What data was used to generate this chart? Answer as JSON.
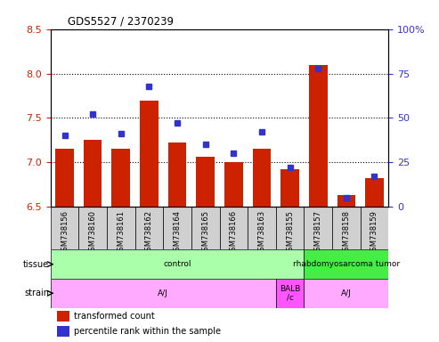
{
  "title": "GDS5527 / 2370239",
  "samples": [
    "GSM738156",
    "GSM738160",
    "GSM738161",
    "GSM738162",
    "GSM738164",
    "GSM738165",
    "GSM738166",
    "GSM738163",
    "GSM738155",
    "GSM738157",
    "GSM738158",
    "GSM738159"
  ],
  "red_values": [
    7.15,
    7.25,
    7.15,
    7.7,
    7.22,
    7.06,
    7.0,
    7.15,
    6.92,
    8.1,
    6.63,
    6.82
  ],
  "blue_values": [
    40,
    52,
    41,
    68,
    47,
    35,
    30,
    42,
    22,
    78,
    5,
    17
  ],
  "ylim_left": [
    6.5,
    8.5
  ],
  "ylim_right": [
    0,
    100
  ],
  "yticks_left": [
    6.5,
    7.0,
    7.5,
    8.0,
    8.5
  ],
  "yticks_right": [
    0,
    25,
    50,
    75,
    100
  ],
  "bar_color": "#cc2200",
  "dot_color": "#3333cc",
  "bar_bottom": 6.5,
  "tissue_groups": [
    {
      "label": "control",
      "start": 0,
      "end": 9,
      "color": "#aaffaa"
    },
    {
      "label": "rhabdomyosarcoma tumor",
      "start": 9,
      "end": 12,
      "color": "#44ee44"
    }
  ],
  "strain_groups": [
    {
      "label": "A/J",
      "start": 0,
      "end": 8,
      "color": "#ffaaff"
    },
    {
      "label": "BALB\n/c",
      "start": 8,
      "end": 9,
      "color": "#ff55ff"
    },
    {
      "label": "A/J",
      "start": 9,
      "end": 12,
      "color": "#ffaaff"
    }
  ],
  "background_color": "#ffffff",
  "tick_label_color_left": "#cc2200",
  "tick_label_color_right": "#3333cc",
  "plot_bg": "#ffffff",
  "xticklabel_bg": "#d0d0d0"
}
